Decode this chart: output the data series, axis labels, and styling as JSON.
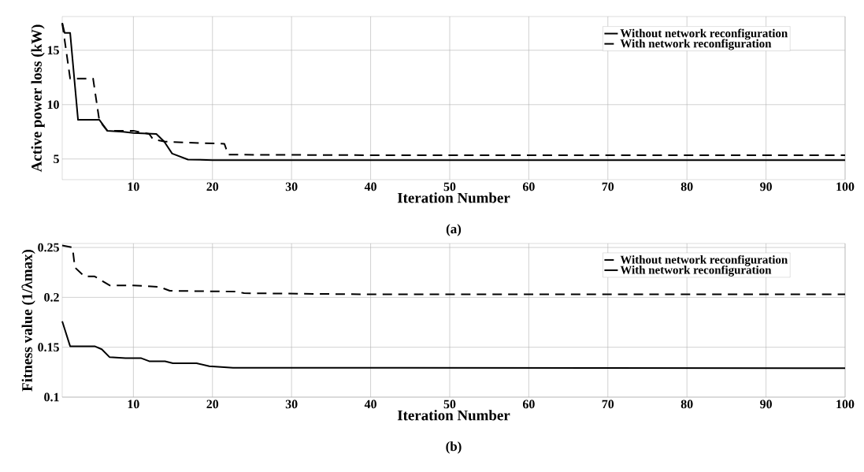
{
  "chart_data": [
    {
      "type": "line",
      "xlabel": "Iteration Number",
      "ylabel": "Active power loss (kW)",
      "annotations": [
        "(a)"
      ],
      "xlim": [
        1,
        100
      ],
      "ylim": [
        3.1,
        18.1
      ],
      "xticks": [
        10,
        20,
        30,
        40,
        50,
        60,
        70,
        80,
        90,
        100
      ],
      "yticks": [
        5,
        10,
        15
      ],
      "grid": true,
      "legend": "top right",
      "series": [
        {
          "name": "Without network reconfiguration",
          "color": "#000000",
          "line_style": "solid",
          "x": [
            1,
            1.3,
            2,
            3,
            5.7,
            6.7,
            8.7,
            10,
            12.9,
            13.9,
            14.9,
            16.9,
            20,
            100
          ],
          "values": [
            17.5,
            16.6,
            16.6,
            8.6,
            8.6,
            7.6,
            7.5,
            7.4,
            7.3,
            6.6,
            5.5,
            4.95,
            4.9,
            4.9
          ]
        },
        {
          "name": "With network reconfiguration",
          "color": "#000000",
          "line_style": "dashed",
          "x": [
            1,
            2,
            4.9,
            5.7,
            6.7,
            10,
            12,
            12.5,
            14,
            17,
            21.5,
            22,
            40,
            100
          ],
          "values": [
            17.5,
            12.4,
            12.4,
            8.5,
            7.6,
            7.6,
            7.3,
            6.8,
            6.6,
            6.5,
            6.4,
            5.4,
            5.35,
            5.35
          ]
        }
      ]
    },
    {
      "type": "line",
      "xlabel": "Iteration Number",
      "ylabel": "Fitness value (1/λmax)",
      "annotations": [
        "(b)"
      ],
      "xlim": [
        1,
        100
      ],
      "ylim": [
        0.1,
        0.254
      ],
      "xticks": [
        10,
        20,
        30,
        40,
        50,
        60,
        70,
        80,
        90,
        100
      ],
      "yticks": [
        0.1,
        0.15,
        0.2,
        0.25
      ],
      "grid": true,
      "legend": "top right",
      "series": [
        {
          "name": "Without network reconfiguration",
          "color": "#000000",
          "line_style": "dashed",
          "x": [
            1,
            2.3,
            2.6,
            3.8,
            5.1,
            7,
            10,
            13.3,
            14.6,
            23,
            24,
            40,
            100
          ],
          "values": [
            0.252,
            0.25,
            0.23,
            0.221,
            0.221,
            0.212,
            0.212,
            0.2105,
            0.2066,
            0.2058,
            0.2042,
            0.203,
            0.203
          ]
        },
        {
          "name": "With network reconfiguration",
          "color": "#000000",
          "line_style": "solid",
          "x": [
            1,
            2,
            5.1,
            6,
            7,
            9,
            11,
            12,
            14,
            15,
            18,
            19.6,
            22.6,
            100
          ],
          "values": [
            0.176,
            0.151,
            0.151,
            0.148,
            0.14,
            0.139,
            0.139,
            0.136,
            0.136,
            0.134,
            0.134,
            0.131,
            0.1295,
            0.129
          ]
        }
      ]
    }
  ]
}
